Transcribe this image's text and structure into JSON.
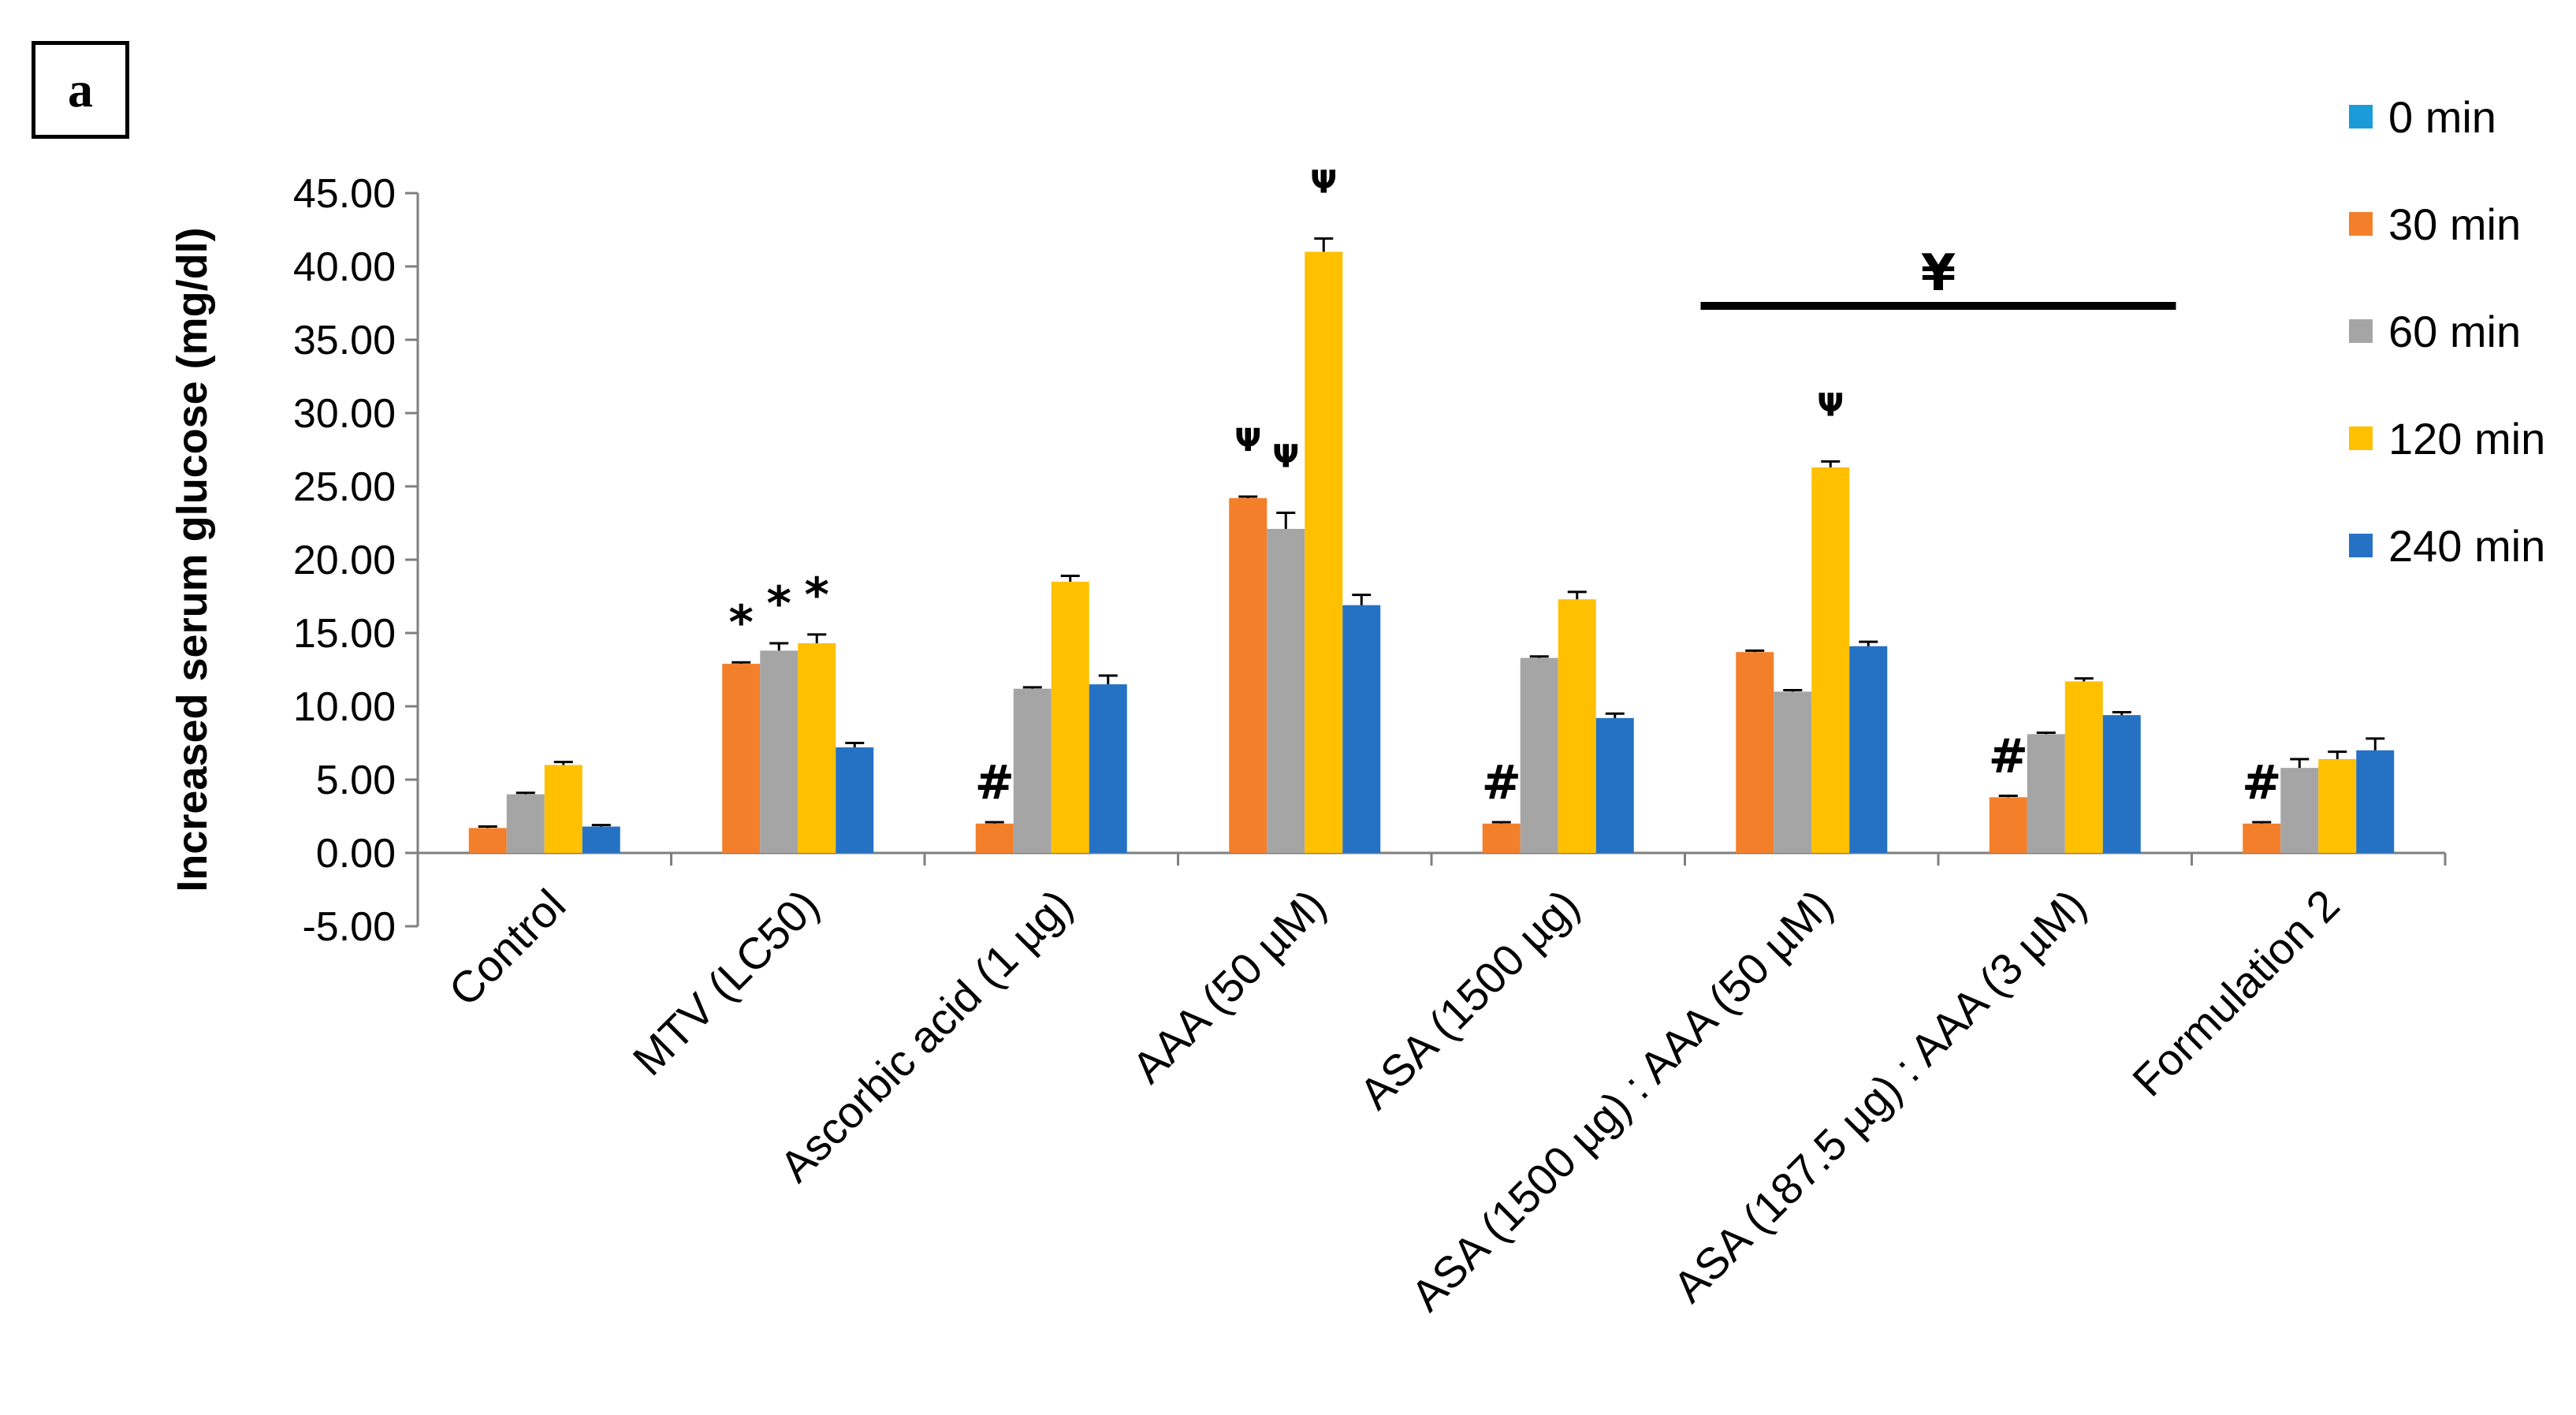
{
  "panel_label": "a",
  "chart_data": {
    "type": "bar",
    "title": "",
    "xlabel": "",
    "ylabel": "Increased serum glucose (mg/dl)",
    "ylim": [
      -5,
      45
    ],
    "yticks": [
      "45.00",
      "40.00",
      "35.00",
      "30.00",
      "25.00",
      "20.00",
      "15.00",
      "10.00",
      "5.00",
      "0.00",
      "-5.00"
    ],
    "ytick_values": [
      45,
      40,
      35,
      30,
      25,
      20,
      15,
      10,
      5,
      0,
      -5
    ],
    "categories": [
      "Control",
      "MTV (LC50)",
      "Ascorbic acid (1 µg)",
      "AAA (50 µM)",
      "ASA (1500 µg)",
      "ASA (1500 µg) : AAA (50 µM)",
      "ASA (187.5 µg) : AAA (3 µM)",
      "Formulation 2"
    ],
    "legend_position": "right",
    "series": [
      {
        "name": "0 min",
        "color": "#1b9bd7",
        "values": [
          0,
          0,
          0,
          0,
          0,
          0,
          0,
          0
        ],
        "errors": [
          0,
          0,
          0,
          0,
          0,
          0,
          0,
          0
        ]
      },
      {
        "name": "30 min",
        "color": "#f47f2a",
        "values": [
          1.7,
          12.9,
          2.0,
          24.2,
          2.0,
          13.7,
          3.8,
          2.0
        ],
        "errors": [
          0.1,
          0.1,
          0.1,
          0.1,
          0.1,
          0.1,
          0.1,
          0.1
        ]
      },
      {
        "name": "60 min",
        "color": "#a5a5a5",
        "values": [
          4.0,
          13.8,
          11.2,
          22.1,
          13.3,
          11.0,
          8.1,
          5.8
        ],
        "errors": [
          0.1,
          0.5,
          0.1,
          1.1,
          0.1,
          0.1,
          0.1,
          0.6
        ]
      },
      {
        "name": "120 min",
        "color": "#ffc000",
        "values": [
          6.0,
          14.3,
          18.5,
          41.0,
          17.3,
          26.3,
          11.7,
          6.4
        ],
        "errors": [
          0.2,
          0.6,
          0.4,
          0.9,
          0.5,
          0.4,
          0.2,
          0.5
        ]
      },
      {
        "name": "240 min",
        "color": "#2572c4",
        "values": [
          1.8,
          7.2,
          11.5,
          16.9,
          9.2,
          14.1,
          9.4,
          7.0
        ],
        "errors": [
          0.1,
          0.3,
          0.6,
          0.7,
          0.3,
          0.3,
          0.2,
          0.8
        ]
      }
    ],
    "annotations": [
      {
        "text": "*",
        "category": 1,
        "series": 1
      },
      {
        "text": "*",
        "category": 1,
        "series": 2
      },
      {
        "text": "*",
        "category": 1,
        "series": 3
      },
      {
        "text": "#",
        "category": 2,
        "series": 1
      },
      {
        "text": "#",
        "category": 4,
        "series": 1
      },
      {
        "text": "#",
        "category": 6,
        "series": 1
      },
      {
        "text": "#",
        "category": 7,
        "series": 1
      },
      {
        "text": "Ψ",
        "category": 3,
        "series": 1
      },
      {
        "text": "Ψ",
        "category": 3,
        "series": 2
      },
      {
        "text": "Ψ",
        "category": 3,
        "series": 3
      },
      {
        "text": "Ψ",
        "category": 5,
        "series": 3
      }
    ],
    "group_bracket": {
      "text": "¥",
      "from_category": 5,
      "to_category": 6
    }
  }
}
